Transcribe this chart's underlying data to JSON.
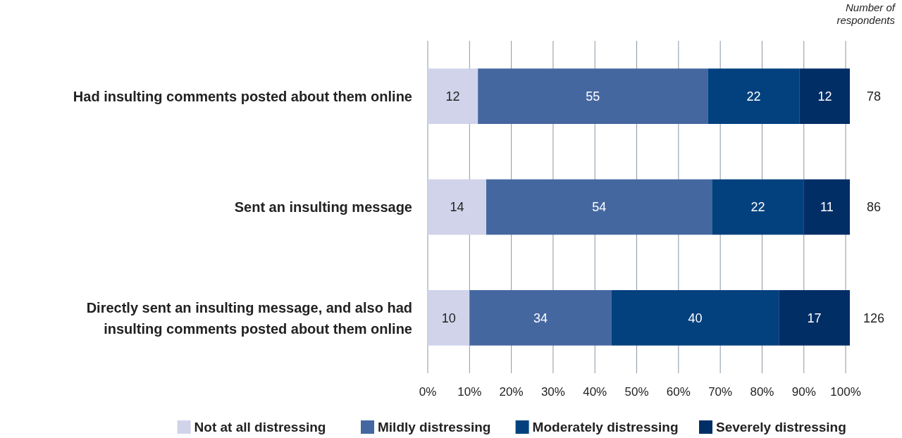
{
  "chart_data": {
    "type": "bar",
    "orientation": "horizontal",
    "stacked": true,
    "categories": [
      "Had insulting comments posted about them online",
      "Sent an insulting message",
      "Directly sent an insulting message, and also had insulting comments posted about them online"
    ],
    "series": [
      {
        "name": "Not at all distressing",
        "color": "#d0d3ea",
        "values": [
          12,
          14,
          10
        ]
      },
      {
        "name": "Mildly distressing",
        "color": "#4567a0",
        "values": [
          55,
          54,
          34
        ]
      },
      {
        "name": "Moderately distressing",
        "color": "#03417e",
        "values": [
          22,
          22,
          40
        ]
      },
      {
        "name": "Severely distressing",
        "color": "#022e66",
        "values": [
          12,
          11,
          17
        ]
      }
    ],
    "xlim": [
      0,
      101
    ],
    "xticks": [
      {
        "value": 0,
        "label": "0%"
      },
      {
        "value": 10,
        "label": "10%"
      },
      {
        "value": 20,
        "label": "20%"
      },
      {
        "value": 30,
        "label": "30%"
      },
      {
        "value": 40,
        "label": "40%"
      },
      {
        "value": 50,
        "label": "50%"
      },
      {
        "value": 60,
        "label": "60%"
      },
      {
        "value": 70,
        "label": "70%"
      },
      {
        "value": 80,
        "label": "80%"
      },
      {
        "value": 90,
        "label": "90%"
      },
      {
        "value": 100,
        "label": "100%"
      }
    ],
    "grid": "x",
    "legend": "bottom",
    "data_labels": true,
    "annotations": [
      "Number of respondents",
      "78",
      "86",
      "126"
    ]
  }
}
